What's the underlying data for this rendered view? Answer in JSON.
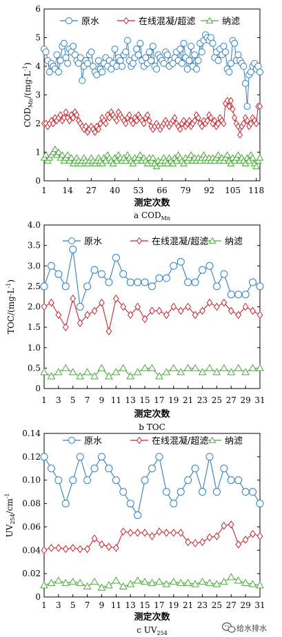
{
  "colors": {
    "raw": "#2e7fbf",
    "coag": "#c4262e",
    "nano": "#4aa83a"
  },
  "watermark": {
    "text": "给水排水",
    "icon": "wechat-icon"
  },
  "chart_data": [
    {
      "type": "line",
      "id": "a",
      "ylabel_main": "COD",
      "ylabel_sub": "Mn",
      "ylabel_unit": "/(mg·L",
      "ylabel_sup": "-1",
      "ylabel_close": ")",
      "xlabel": "测定次数",
      "caption_main": "a COD",
      "caption_sub": "Mn",
      "ylim": [
        0,
        6
      ],
      "yticks": [
        "0",
        "1",
        "2",
        "3",
        "4",
        "5",
        "6"
      ],
      "xlim": [
        1,
        120
      ],
      "xticks": [
        "1",
        "14",
        "27",
        "40",
        "53",
        "66",
        "79",
        "92",
        "105",
        "118"
      ],
      "legend": [
        "原水",
        "在线混凝/超滤",
        "纳滤"
      ],
      "x": [
        1,
        2,
        3,
        4,
        5,
        6,
        7,
        8,
        9,
        10,
        11,
        12,
        13,
        14,
        15,
        16,
        17,
        18,
        19,
        20,
        21,
        22,
        23,
        24,
        25,
        26,
        27,
        28,
        29,
        30,
        31,
        32,
        33,
        34,
        35,
        36,
        37,
        38,
        39,
        40,
        41,
        42,
        43,
        44,
        45,
        46,
        47,
        48,
        49,
        50,
        51,
        52,
        53,
        54,
        55,
        56,
        57,
        58,
        59,
        60,
        61,
        62,
        63,
        64,
        65,
        66,
        67,
        68,
        69,
        70,
        71,
        72,
        73,
        74,
        75,
        76,
        77,
        78,
        79,
        80,
        81,
        82,
        83,
        84,
        85,
        86,
        87,
        88,
        89,
        90,
        91,
        92,
        93,
        94,
        95,
        96,
        97,
        98,
        99,
        100,
        101,
        102,
        103,
        104,
        105,
        106,
        107,
        108,
        109,
        110,
        111,
        112,
        113,
        114,
        115,
        116,
        117,
        118,
        119,
        120
      ],
      "series": [
        {
          "name": "原水",
          "key": "raw",
          "marker": "circle",
          "values": [
            4.6,
            4.5,
            4.2,
            3.8,
            4.1,
            4.0,
            3.9,
            4.4,
            3.8,
            4.2,
            4.7,
            4.8,
            4.3,
            4.1,
            4.6,
            4.5,
            4.7,
            4.4,
            4.2,
            4.1,
            4.3,
            3.5,
            4.0,
            4.2,
            4.1,
            4.4,
            4.5,
            4.0,
            3.8,
            3.7,
            4.2,
            3.9,
            3.8,
            4.1,
            4.3,
            4.0,
            4.2,
            3.9,
            4.1,
            4.6,
            4.0,
            4.3,
            4.2,
            4.0,
            4.4,
            4.5,
            4.9,
            4.2,
            4.0,
            4.1,
            4.3,
            4.6,
            4.4,
            4.8,
            4.2,
            4.0,
            4.3,
            4.1,
            4.5,
            4.2,
            4.7,
            4.0,
            3.9,
            4.4,
            4.3,
            4.2,
            4.1,
            4.5,
            4.4,
            4.0,
            4.2,
            4.1,
            4.3,
            4.5,
            4.2,
            4.6,
            4.1,
            4.8,
            4.3,
            3.9,
            4.2,
            4.7,
            4.0,
            4.4,
            3.9,
            4.2,
            4.8,
            4.5,
            4.9,
            5.1,
            5.0,
            4.9,
            5.0,
            4.8,
            4.3,
            4.5,
            4.2,
            4.6,
            4.4,
            4.7,
            4.5,
            3.9,
            3.8,
            4.1,
            4.9,
            4.8,
            4.2,
            4.4,
            4.2,
            4.1,
            4.0,
            3.4,
            2.6,
            3.7,
            3.8,
            4.0,
            4.1,
            3.9,
            4.0,
            3.8
          ]
        },
        {
          "name": "在线混凝/超滤",
          "key": "coag",
          "marker": "diamond",
          "values": [
            2.0,
            2.0,
            1.9,
            2.0,
            2.1,
            2.0,
            2.2,
            2.1,
            2.2,
            2.3,
            2.1,
            2.2,
            2.4,
            2.2,
            2.1,
            2.3,
            2.2,
            2.4,
            2.3,
            2.1,
            2.0,
            1.9,
            1.8,
            1.9,
            1.7,
            1.8,
            1.9,
            1.8,
            1.7,
            1.9,
            1.8,
            2.0,
            2.2,
            2.1,
            2.0,
            2.3,
            2.2,
            2.4,
            2.3,
            2.2,
            2.1,
            2.4,
            2.3,
            2.2,
            2.1,
            2.0,
            2.2,
            2.3,
            2.1,
            2.0,
            2.2,
            2.1,
            2.3,
            2.2,
            2.1,
            2.0,
            2.2,
            2.3,
            2.1,
            1.9,
            1.8,
            1.9,
            2.0,
            1.9,
            1.8,
            1.9,
            2.0,
            2.1,
            2.0,
            1.9,
            2.0,
            2.1,
            2.2,
            2.0,
            1.9,
            1.8,
            2.0,
            2.1,
            1.9,
            2.0,
            2.1,
            1.9,
            2.0,
            2.1,
            2.3,
            2.2,
            2.0,
            1.9,
            2.1,
            2.0,
            2.1,
            2.3,
            2.2,
            2.0,
            2.1,
            1.9,
            2.0,
            2.2,
            2.1,
            2.0,
            2.7,
            2.8,
            2.6,
            2.8,
            2.5,
            2.2,
            2.0,
            1.9,
            1.6,
            1.9,
            2.0,
            2.2,
            2.1,
            1.9,
            2.0,
            2.2,
            2.1,
            2.0,
            2.6,
            2.6
          ]
        },
        {
          "name": "纳滤",
          "key": "nano",
          "marker": "triangle",
          "values": [
            0.8,
            0.9,
            0.7,
            0.8,
            0.9,
            1.0,
            1.1,
            0.9,
            1.0,
            0.8,
            0.9,
            0.7,
            0.8,
            0.9,
            0.7,
            0.8,
            0.6,
            0.7,
            0.8,
            0.7,
            0.6,
            0.7,
            0.8,
            0.7,
            0.6,
            0.7,
            0.8,
            0.7,
            0.6,
            0.7,
            0.8,
            0.7,
            0.6,
            0.8,
            0.7,
            0.9,
            0.8,
            0.7,
            0.6,
            0.8,
            0.7,
            0.9,
            0.8,
            0.7,
            0.8,
            0.7,
            0.9,
            0.8,
            0.7,
            0.6,
            0.8,
            0.7,
            0.8,
            0.9,
            0.7,
            0.8,
            0.7,
            0.6,
            0.8,
            0.7,
            0.8,
            0.6,
            0.5,
            0.7,
            0.6,
            0.7,
            0.8,
            0.7,
            0.6,
            0.8,
            0.7,
            0.6,
            0.8,
            0.7,
            0.9,
            0.8,
            0.7,
            0.6,
            0.8,
            0.7,
            0.8,
            0.9,
            0.7,
            0.8,
            0.7,
            0.8,
            0.7,
            0.8,
            0.9,
            0.8,
            0.7,
            0.8,
            0.7,
            0.8,
            0.7,
            0.8,
            0.9,
            0.7,
            0.8,
            0.7,
            0.8,
            0.9,
            0.7,
            0.6,
            0.8,
            0.7,
            0.8,
            0.9,
            0.7,
            0.8,
            0.7,
            0.6,
            0.8,
            0.7,
            0.9,
            0.8,
            0.6,
            0.5,
            0.7,
            0.8
          ]
        }
      ]
    },
    {
      "type": "line",
      "id": "b",
      "ylabel_main": "TOC",
      "ylabel_sub": "",
      "ylabel_unit": "/(mg·L",
      "ylabel_sup": "-1",
      "ylabel_close": ")",
      "xlabel": "测定次数",
      "caption_main": "b TOC",
      "caption_sub": "",
      "ylim": [
        0,
        4.0
      ],
      "yticks": [
        "0",
        "0.5",
        "1.0",
        "1.5",
        "2.0",
        "2.5",
        "3.0",
        "3.5",
        "4.0"
      ],
      "xlim": [
        1,
        31
      ],
      "xticks": [
        "1",
        "3",
        "5",
        "7",
        "9",
        "11",
        "13",
        "15",
        "17",
        "19",
        "21",
        "23",
        "25",
        "27",
        "29",
        "31"
      ],
      "legend": [
        "原水",
        "在线混凝/超滤",
        "纳滤"
      ],
      "x": [
        1,
        2,
        3,
        4,
        5,
        6,
        7,
        8,
        9,
        10,
        11,
        12,
        13,
        14,
        15,
        16,
        17,
        18,
        19,
        20,
        21,
        22,
        23,
        24,
        25,
        26,
        27,
        28,
        29,
        30,
        31
      ],
      "series": [
        {
          "name": "原水",
          "key": "raw",
          "marker": "circle",
          "values": [
            2.5,
            3.0,
            2.8,
            2.5,
            3.4,
            2.0,
            2.5,
            2.9,
            2.8,
            2.6,
            3.2,
            2.8,
            2.6,
            2.6,
            2.6,
            2.5,
            2.7,
            2.7,
            3.0,
            3.1,
            2.6,
            2.6,
            2.9,
            3.0,
            2.5,
            2.8,
            2.3,
            2.3,
            2.3,
            2.6,
            2.5
          ]
        },
        {
          "name": "在线混凝/超滤",
          "key": "coag",
          "marker": "diamond",
          "values": [
            2.0,
            2.1,
            1.8,
            1.5,
            2.2,
            1.6,
            1.8,
            1.9,
            2.1,
            1.4,
            2.2,
            2.0,
            1.8,
            2.0,
            1.7,
            1.9,
            1.9,
            1.8,
            2.0,
            1.9,
            2.0,
            1.8,
            1.9,
            2.1,
            2.0,
            2.1,
            1.9,
            1.8,
            2.0,
            1.9,
            1.8
          ]
        },
        {
          "name": "纳滤",
          "key": "nano",
          "marker": "triangle",
          "values": [
            0.4,
            0.3,
            0.4,
            0.5,
            0.4,
            0.3,
            0.4,
            0.3,
            0.5,
            0.3,
            0.4,
            0.5,
            0.3,
            0.4,
            0.5,
            0.5,
            0.3,
            0.4,
            0.5,
            0.4,
            0.5,
            0.5,
            0.4,
            0.5,
            0.4,
            0.5,
            0.4,
            0.5,
            0.4,
            0.5,
            0.5
          ]
        }
      ]
    },
    {
      "type": "line",
      "id": "c",
      "ylabel_main": "UV",
      "ylabel_sub": "254",
      "ylabel_unit": "/cm",
      "ylabel_sup": "-1",
      "ylabel_close": "",
      "xlabel": "测定次数",
      "caption_main": "c UV",
      "caption_sub": "254",
      "ylim": [
        0,
        0.14
      ],
      "yticks": [
        "0",
        "0.02",
        "0.04",
        "0.06",
        "0.08",
        "0.10",
        "0.12",
        "0.14"
      ],
      "xlim": [
        1,
        31
      ],
      "xticks": [
        "1",
        "3",
        "5",
        "7",
        "9",
        "11",
        "13",
        "15",
        "17",
        "19",
        "21",
        "23",
        "25",
        "27",
        "29",
        "31"
      ],
      "legend": [
        "原水",
        "在线混凝/超滤",
        "纳滤"
      ],
      "x": [
        1,
        2,
        3,
        4,
        5,
        6,
        7,
        8,
        9,
        10,
        11,
        12,
        13,
        14,
        15,
        16,
        17,
        18,
        19,
        20,
        21,
        22,
        23,
        24,
        25,
        26,
        27,
        28,
        29,
        30,
        31
      ],
      "series": [
        {
          "name": "原水",
          "key": "raw",
          "marker": "circle",
          "values": [
            0.12,
            0.11,
            0.1,
            0.08,
            0.1,
            0.12,
            0.1,
            0.11,
            0.12,
            0.11,
            0.1,
            0.09,
            0.08,
            0.07,
            0.1,
            0.11,
            0.12,
            0.09,
            0.08,
            0.09,
            0.1,
            0.11,
            0.09,
            0.12,
            0.09,
            0.11,
            0.1,
            0.1,
            0.09,
            0.09,
            0.08
          ]
        },
        {
          "name": "在线混凝/超滤",
          "key": "coag",
          "marker": "diamond",
          "values": [
            0.04,
            0.042,
            0.042,
            0.041,
            0.042,
            0.041,
            0.041,
            0.05,
            0.045,
            0.043,
            0.042,
            0.056,
            0.055,
            0.055,
            0.055,
            0.052,
            0.056,
            0.055,
            0.055,
            0.055,
            0.047,
            0.046,
            0.047,
            0.051,
            0.052,
            0.061,
            0.062,
            0.045,
            0.049,
            0.054,
            0.052
          ]
        },
        {
          "name": "纳滤",
          "key": "nano",
          "marker": "triangle",
          "values": [
            0.01,
            0.012,
            0.014,
            0.012,
            0.013,
            0.012,
            0.009,
            0.013,
            0.008,
            0.01,
            0.014,
            0.009,
            0.011,
            0.014,
            0.013,
            0.012,
            0.013,
            0.011,
            0.013,
            0.012,
            0.012,
            0.011,
            0.013,
            0.012,
            0.011,
            0.013,
            0.017,
            0.014,
            0.012,
            0.011,
            0.01
          ]
        }
      ]
    }
  ]
}
